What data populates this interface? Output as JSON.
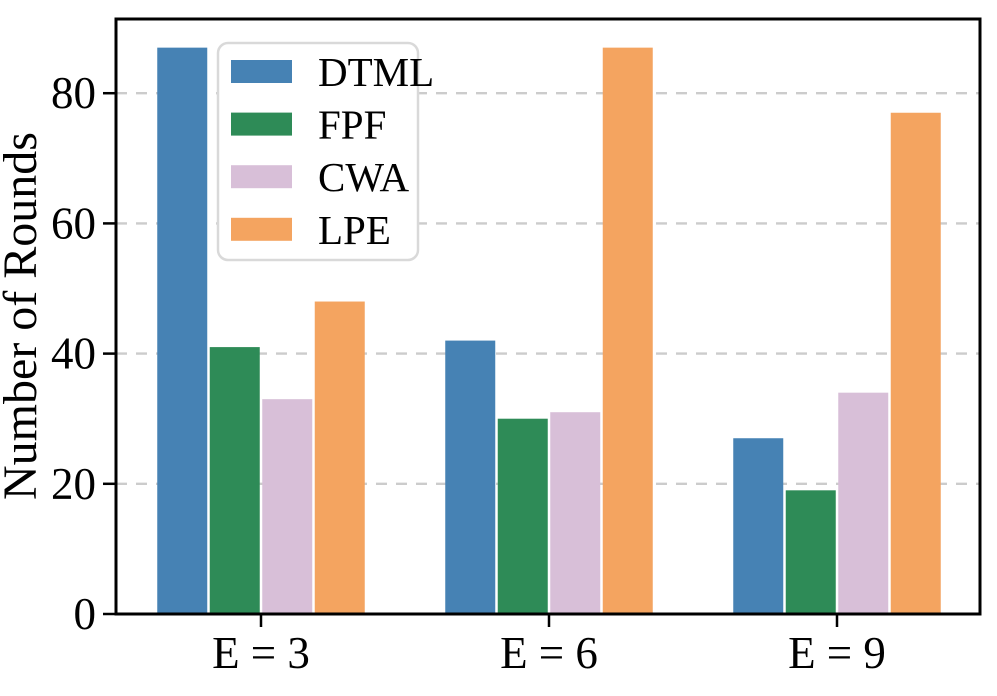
{
  "figure_title": "",
  "axes": {
    "y_label": "Number of Rounds",
    "x_label": "",
    "y_tick_labels": [
      "0",
      "20",
      "40",
      "60",
      "80"
    ]
  },
  "legend": {
    "entries": [
      "DTML",
      "FPF",
      "CWA",
      "LPE"
    ]
  },
  "colors": {
    "dtml": "#4682B4",
    "fpf": "#2E8B57",
    "cwa": "#D8BFD8",
    "lpe": "#F4A460",
    "grid": "#cccccc",
    "frame": "#000000",
    "legend_border": "#d9d9d9",
    "background": "#ffffff",
    "text": "#000000"
  },
  "chart_data": {
    "type": "bar",
    "title": "",
    "xlabel": "",
    "ylabel": "Number of Rounds",
    "categories": [
      "E = 3",
      "E = 6",
      "E = 9"
    ],
    "series": [
      {
        "name": "DTML",
        "color": "#4682B4",
        "values": [
          87,
          42,
          27
        ]
      },
      {
        "name": "FPF",
        "color": "#2E8B57",
        "values": [
          41,
          30,
          19
        ]
      },
      {
        "name": "CWA",
        "color": "#D8BFD8",
        "values": [
          33,
          31,
          34
        ]
      },
      {
        "name": "LPE",
        "color": "#F4A460",
        "values": [
          48,
          87,
          77
        ]
      }
    ],
    "ylim": [
      0,
      91.4
    ],
    "yticks": [
      0,
      20,
      40,
      60,
      80
    ],
    "grid": "horizontal dashed gridlines at y ticks above 0, drawn behind bars",
    "legend_position": "upper left inside plot",
    "bar_grouping": "4 series per category, grouped"
  }
}
